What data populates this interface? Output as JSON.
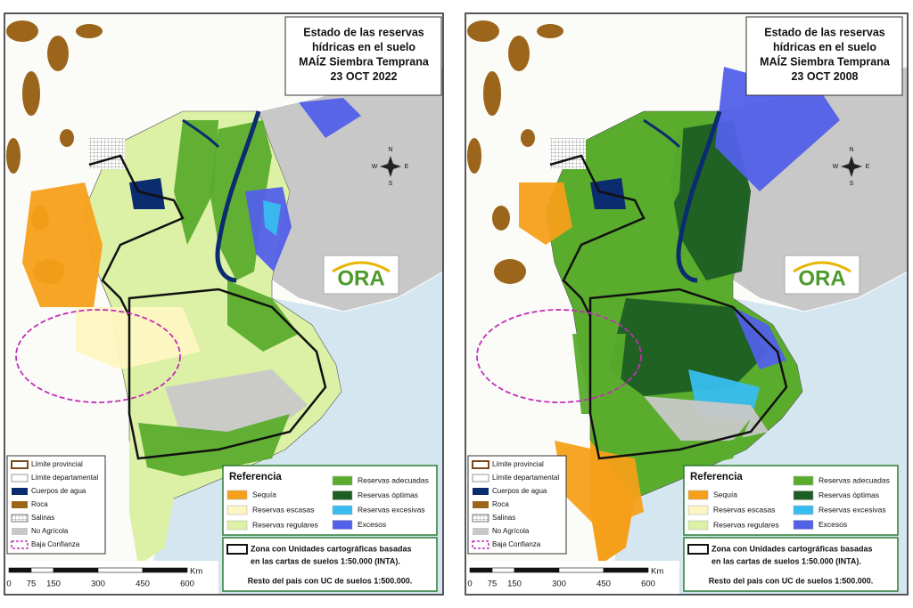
{
  "panels": [
    {
      "title": [
        "Estado de las reservas",
        "hídricas en el suelo",
        "MAÍZ Siembra Temprana",
        "23 OCT 2022"
      ]
    },
    {
      "title": [
        "Estado de las reservas",
        "hídricas en el suelo",
        "MAÍZ Siembra Temprana",
        "23 OCT 2008"
      ]
    }
  ],
  "base_legend": [
    {
      "label": "Límite provincial",
      "color": "#7a4a1c"
    },
    {
      "label": "Límite departamental",
      "color": "#9a9a9a"
    },
    {
      "label": "Cuerpos de agua",
      "color": "#0b2c6f"
    },
    {
      "label": "Roca",
      "color": "#9c651c"
    },
    {
      "label": "Salinas",
      "color": "#777777"
    },
    {
      "label": "No Agrícola",
      "color": "#c8c8c8"
    },
    {
      "label": "Baja Confianza",
      "color": "#c22fb8"
    }
  ],
  "reference": {
    "title": "Referencia",
    "items": [
      {
        "label": "Sequía",
        "color": "#f5a01a"
      },
      {
        "label": "Reservas escasas",
        "color": "#fdf5c2"
      },
      {
        "label": "Reservas regulares",
        "color": "#dcf0a6"
      },
      {
        "label": "Reservas adecuadas",
        "color": "#5aac2c"
      },
      {
        "label": "Reservas óptimas",
        "color": "#1d5e24"
      },
      {
        "label": "Reservas excesivas",
        "color": "#38bdf0"
      },
      {
        "label": "Excesos",
        "color": "#5260e8"
      }
    ]
  },
  "zone_note": [
    "Zona con Unidades cartográficas basadas",
    "en las cartas de suelos 1:50.000 (INTA).",
    "Resto del pais con UC de suelos 1:500.000."
  ],
  "scale": {
    "ticks": [
      0,
      75,
      150,
      300,
      450,
      600
    ],
    "unit": "Km"
  },
  "logo": "ORA",
  "compass": [
    "N",
    "S",
    "E",
    "W"
  ]
}
